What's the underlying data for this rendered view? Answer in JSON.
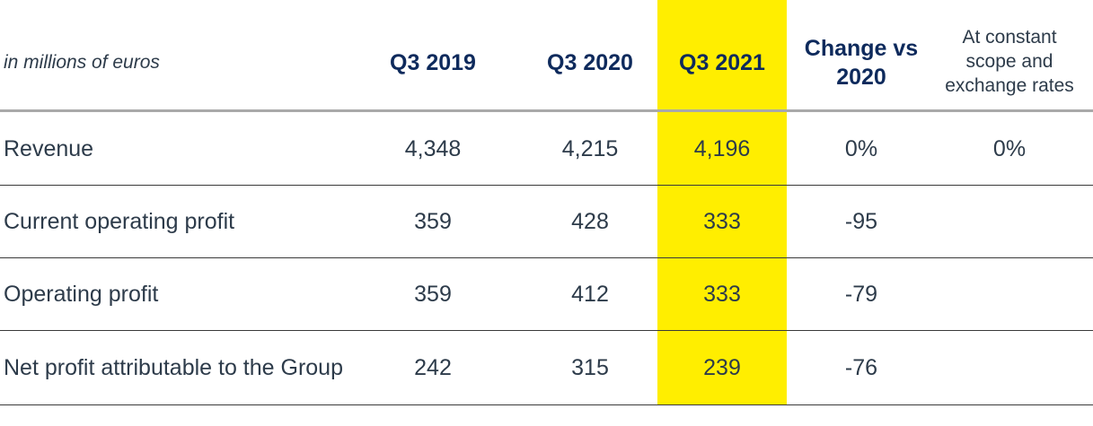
{
  "table": {
    "unit_label": "in millions of euros",
    "columns": [
      "Q3 2019",
      "Q3 2020",
      "Q3 2021",
      "Change vs 2020",
      "At constant scope and exchange rates"
    ],
    "highlight_color": "#ffee00",
    "rows": [
      {
        "label": "Revenue",
        "values": [
          "4,348",
          "4,215",
          "4,196",
          "0%",
          "0%"
        ]
      },
      {
        "label": "Current operating profit",
        "values": [
          "359",
          "428",
          "333",
          "-95",
          ""
        ]
      },
      {
        "label": "Operating profit",
        "values": [
          "359",
          "412",
          "333",
          "-79",
          ""
        ]
      },
      {
        "label": "Net profit attributable to the Group",
        "values": [
          "242",
          "315",
          "239",
          "-76",
          ""
        ]
      }
    ]
  }
}
